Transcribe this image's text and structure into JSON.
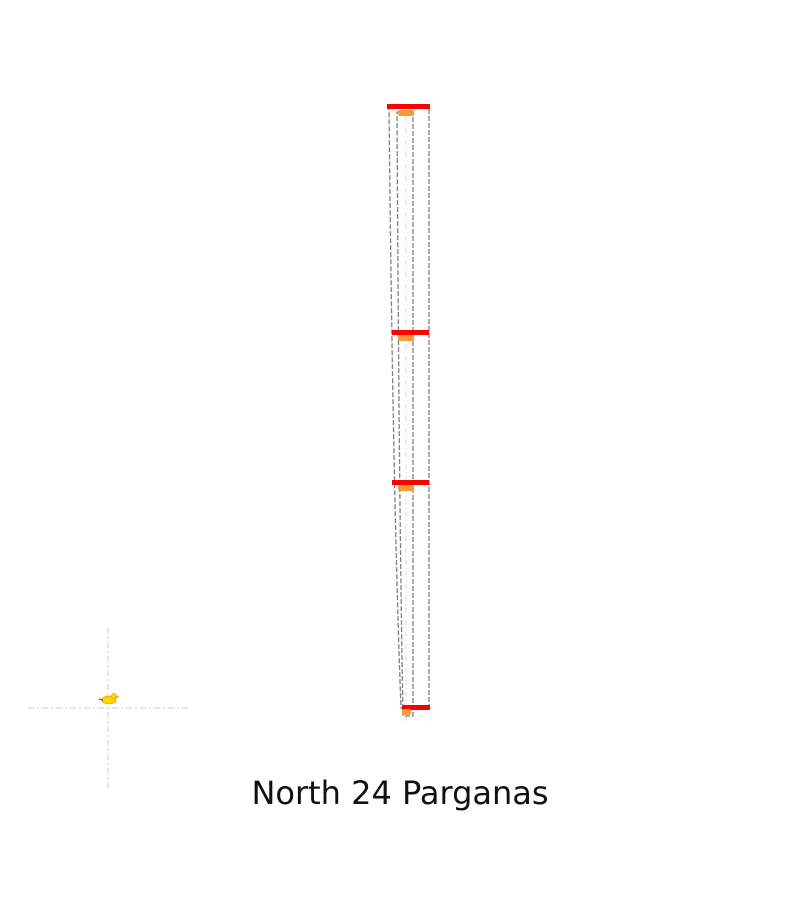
{
  "caption": "North 24 Parganas",
  "colors": {
    "boundary": "#ff0000",
    "stroke": "#808080",
    "guide": "#d8d8d8",
    "marker": "#f59a3c",
    "pin": "#ffd700"
  },
  "icons": {
    "locator": "yellow-bird-pin-icon"
  }
}
